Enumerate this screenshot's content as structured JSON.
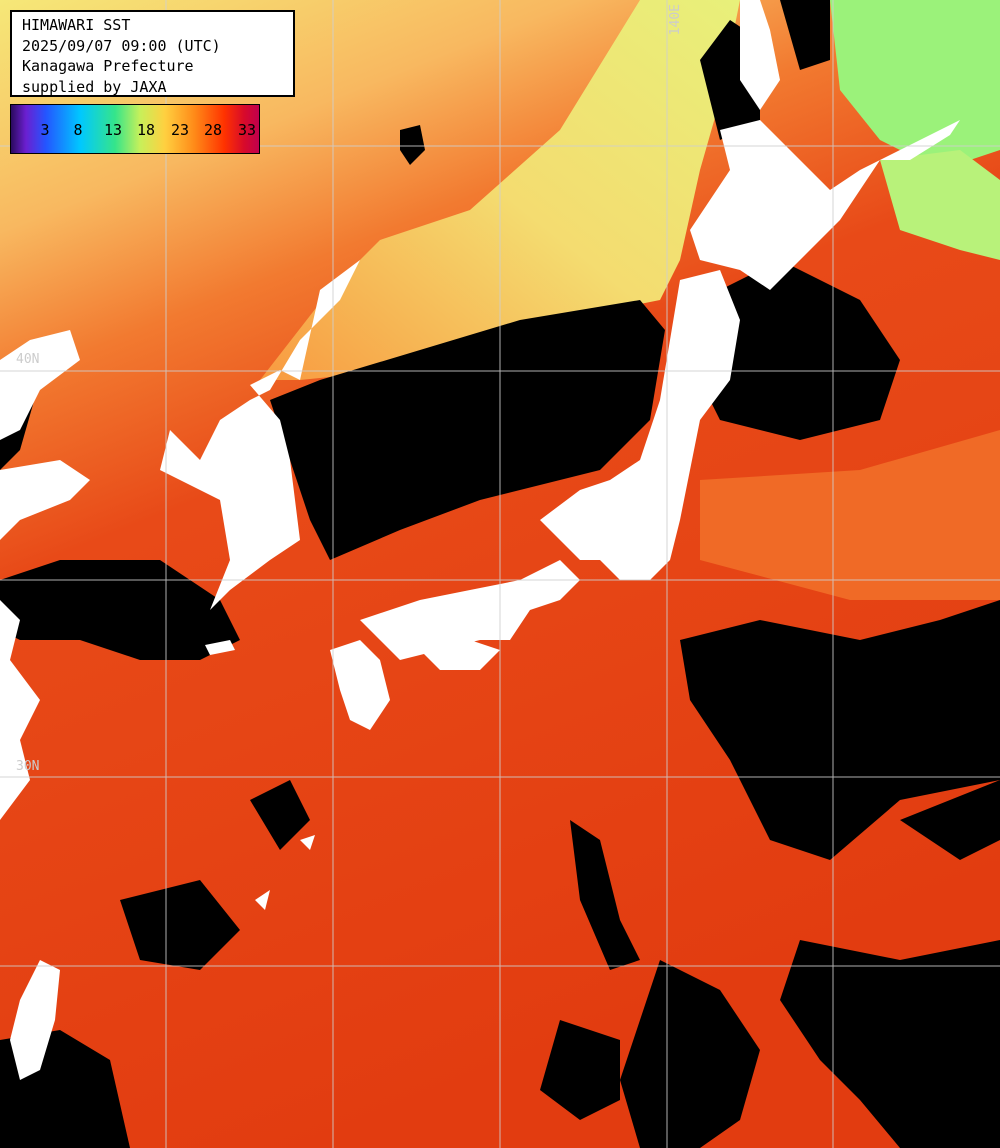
{
  "map": {
    "title_lines": [
      "HIMAWARI SST",
      "2025/09/07 09:00 (UTC)",
      "Kanagawa Prefecture",
      "supplied by JAXA"
    ],
    "legend": {
      "ticks": [
        "3",
        "8",
        "13",
        "18",
        "23",
        "28",
        "33"
      ]
    },
    "grid_labels": {
      "lon_140": "140E",
      "lat_40": "40N",
      "lat_30": "30N"
    },
    "colors": {
      "land": "#ffffff",
      "no_data": "#000000",
      "warm_sea": "#e8380f",
      "cold_sea": "#f0e070",
      "grid": "#cfcfcf"
    }
  }
}
